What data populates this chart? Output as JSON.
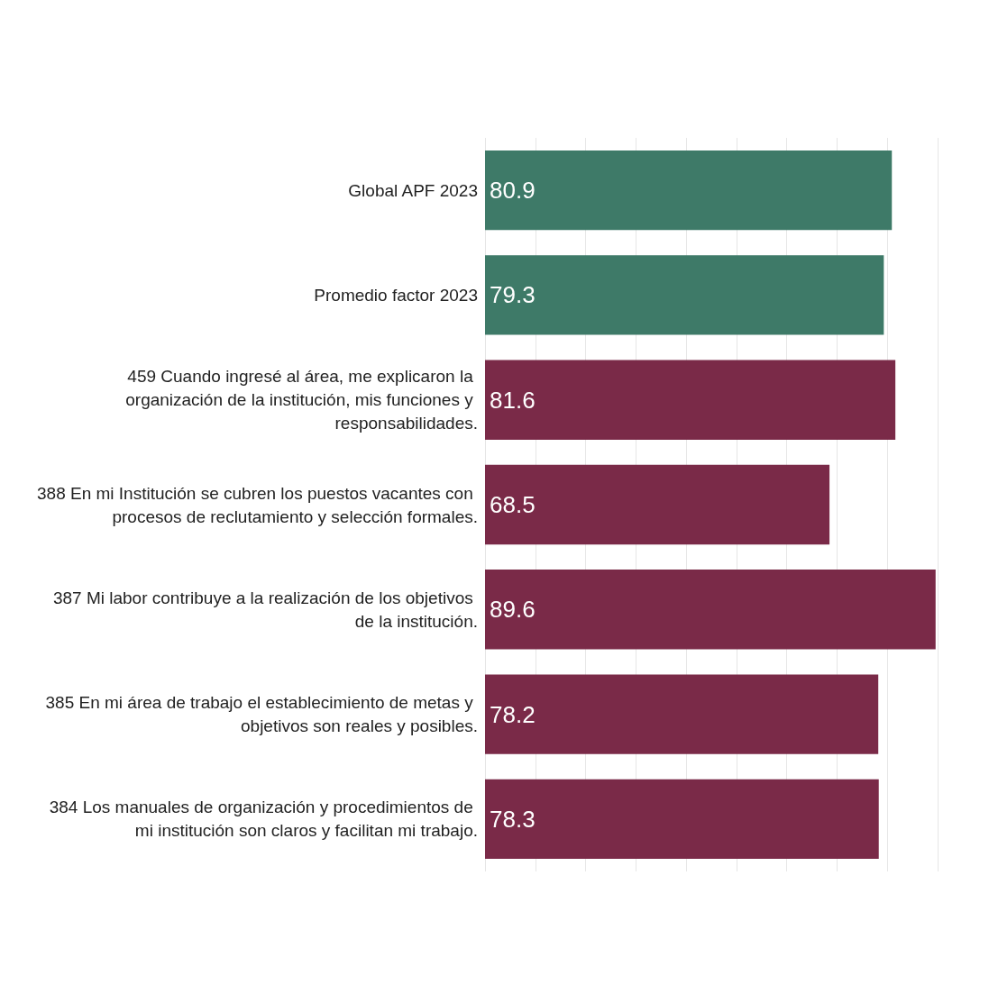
{
  "chart_data": {
    "type": "bar",
    "orientation": "horizontal",
    "categories": [
      "Global APF 2023",
      "Promedio factor 2023",
      "459 Cuando ingresé al área, me explicaron la organización de la institución, mis funciones y responsabilidades.",
      "388 En mi Institución se cubren los puestos vacantes con procesos de reclutamiento y selección formales.",
      "387 Mi labor contribuye a la realización de los objetivos de la institución.",
      "385 En mi área de trabajo el establecimiento de metas y objetivos son reales y posibles.",
      "384 Los manuales de organización y procedimientos de mi institución son claros y facilitan mi trabajo."
    ],
    "values": [
      80.9,
      79.3,
      81.6,
      68.5,
      89.6,
      78.2,
      78.3
    ],
    "colors": [
      "#3e7a68",
      "#3e7a68",
      "#7a2a48",
      "#7a2a48",
      "#7a2a48",
      "#7a2a48",
      "#7a2a48"
    ],
    "xlim": [
      0,
      90
    ],
    "xticks": [
      {
        "value": 0,
        "label": null
      },
      {
        "value": 10,
        "label": null
      },
      {
        "value": 20,
        "label": null
      },
      {
        "value": 30,
        "label": null
      },
      {
        "value": 40,
        "label": null
      },
      {
        "value": 50,
        "label": null
      },
      {
        "value": 60,
        "label": null
      },
      {
        "value": 70,
        "label": null
      },
      {
        "value": 80,
        "label": null
      },
      {
        "value": 90,
        "label": null
      }
    ],
    "grid": "x",
    "tick_labels": "y",
    "data_labels": true
  }
}
